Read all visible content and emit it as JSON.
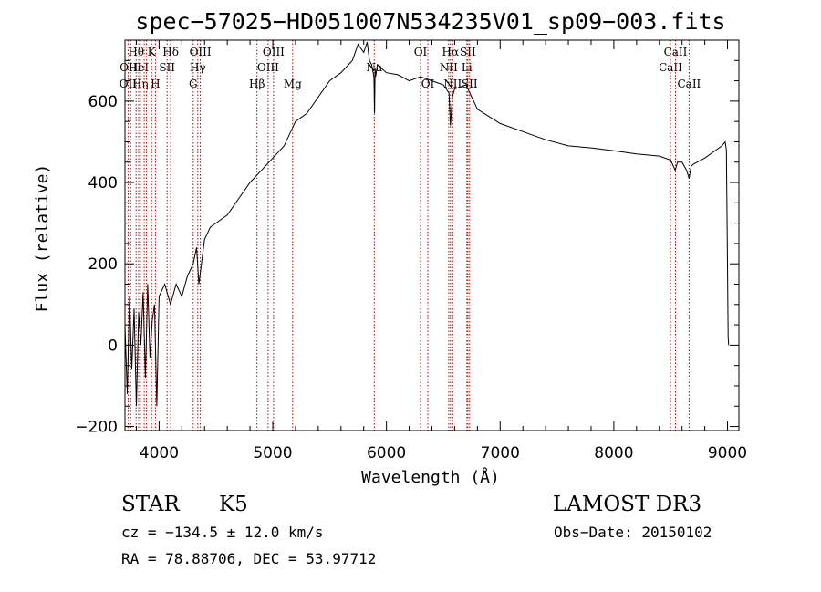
{
  "chart_data": {
    "type": "line",
    "title": "spec−57025−HD051007N534235V01_sp09−003.fits",
    "xlabel": "Wavelength (Å)",
    "ylabel": "Flux (relative)",
    "xlim": [
      3700,
      9100
    ],
    "ylim": [
      -210,
      750
    ],
    "xticks": [
      4000,
      5000,
      6000,
      7000,
      8000,
      9000
    ],
    "xtick_labels": [
      "4000",
      "5000",
      "6000",
      "7000",
      "8000",
      "9000"
    ],
    "yticks": [
      -200,
      0,
      200,
      400,
      600
    ],
    "ytick_labels": [
      "−200",
      "0",
      "200",
      "400",
      "600"
    ],
    "series": [
      {
        "name": "flux",
        "x": [
          3700,
          3720,
          3740,
          3760,
          3780,
          3800,
          3820,
          3840,
          3860,
          3880,
          3900,
          3920,
          3940,
          3960,
          3980,
          4000,
          4050,
          4100,
          4150,
          4200,
          4250,
          4300,
          4330,
          4350,
          4400,
          4450,
          4500,
          4600,
          4700,
          4800,
          4900,
          5000,
          5100,
          5200,
          5300,
          5400,
          5500,
          5600,
          5700,
          5750,
          5800,
          5830,
          5850,
          5870,
          5890,
          5895,
          5900,
          5905,
          5920,
          6000,
          6100,
          6200,
          6300,
          6400,
          6500,
          6550,
          6563,
          6580,
          6600,
          6700,
          6800,
          7000,
          7200,
          7400,
          7600,
          7800,
          8000,
          8200,
          8400,
          8500,
          8540,
          8560,
          8600,
          8640,
          8662,
          8680,
          8700,
          8800,
          8900,
          8950,
          8980,
          8990,
          9000,
          9005,
          9010
        ],
        "y": [
          50,
          -120,
          120,
          -60,
          90,
          -150,
          80,
          0,
          130,
          -80,
          150,
          -30,
          60,
          100,
          -150,
          120,
          150,
          100,
          150,
          120,
          170,
          200,
          240,
          150,
          260,
          290,
          300,
          320,
          360,
          400,
          430,
          460,
          490,
          550,
          570,
          610,
          650,
          670,
          700,
          740,
          720,
          745,
          700,
          690,
          660,
          570,
          680,
          660,
          690,
          670,
          665,
          650,
          660,
          650,
          640,
          620,
          540,
          610,
          630,
          640,
          580,
          545,
          525,
          505,
          490,
          485,
          478,
          470,
          465,
          455,
          430,
          450,
          450,
          430,
          410,
          440,
          445,
          460,
          480,
          490,
          500,
          480,
          200,
          20,
          0
        ]
      }
    ],
    "line_markers": [
      {
        "wavelength": 3727,
        "labels": [
          "OII"
        ],
        "row": 3
      },
      {
        "wavelength": 3750,
        "labels": [
          "OIII"
        ],
        "row": 2
      },
      {
        "wavelength": 3798,
        "labels": [
          "Hθ"
        ],
        "row": 1
      },
      {
        "wavelength": 3820,
        "labels": [
          "HeI"
        ],
        "row": 2
      },
      {
        "wavelength": 3835,
        "labels": [
          "Hη"
        ],
        "row": 3
      },
      {
        "wavelength": 3869,
        "labels": [],
        "row": 0
      },
      {
        "wavelength": 3889,
        "labels": [],
        "row": 0
      },
      {
        "wavelength": 3934,
        "labels": [
          "K"
        ],
        "row": 1
      },
      {
        "wavelength": 3968,
        "labels": [
          "H"
        ],
        "row": 3
      },
      {
        "wavelength": 4071,
        "labels": [
          "SII"
        ],
        "row": 2
      },
      {
        "wavelength": 4102,
        "labels": [
          "Hδ"
        ],
        "row": 1
      },
      {
        "wavelength": 4300,
        "labels": [
          "G"
        ],
        "row": 3
      },
      {
        "wavelength": 4340,
        "labels": [
          "Hγ"
        ],
        "row": 2
      },
      {
        "wavelength": 4363,
        "labels": [
          "OIII"
        ],
        "row": 1
      },
      {
        "wavelength": 4861,
        "labels": [
          "Hβ"
        ],
        "row": 3
      },
      {
        "wavelength": 4959,
        "labels": [
          "OIII"
        ],
        "row": 2
      },
      {
        "wavelength": 5007,
        "labels": [
          "OIII"
        ],
        "row": 1
      },
      {
        "wavelength": 5175,
        "labels": [
          "Mg"
        ],
        "row": 3
      },
      {
        "wavelength": 5893,
        "labels": [
          "Na"
        ],
        "row": 2
      },
      {
        "wavelength": 6300,
        "labels": [
          "OI"
        ],
        "row": 1
      },
      {
        "wavelength": 6364,
        "labels": [
          "OI"
        ],
        "row": 3
      },
      {
        "wavelength": 6548,
        "labels": [
          "NII"
        ],
        "row": 2
      },
      {
        "wavelength": 6563,
        "labels": [
          "Hα"
        ],
        "row": 1
      },
      {
        "wavelength": 6583,
        "labels": [
          "NII"
        ],
        "row": 3
      },
      {
        "wavelength": 6707,
        "labels": [
          "Li"
        ],
        "row": 2
      },
      {
        "wavelength": 6716,
        "labels": [
          "SII"
        ],
        "row": 1
      },
      {
        "wavelength": 6731,
        "labels": [
          "SII"
        ],
        "row": 3
      },
      {
        "wavelength": 8498,
        "labels": [
          "CaII"
        ],
        "row": 2
      },
      {
        "wavelength": 8542,
        "labels": [
          "CaII"
        ],
        "row": 1
      },
      {
        "wavelength": 8662,
        "labels": [
          "CaII"
        ],
        "row": 3
      }
    ]
  },
  "info": {
    "object_type": "STAR",
    "subclass": "K5",
    "survey": "LAMOST DR3",
    "cz": "cz = −134.5 ± 12.0 km/s",
    "obs_date": "Obs−Date: 20150102",
    "coords": "RA =  78.88706, DEC =  53.97712"
  },
  "colors": {
    "axis": "#000000",
    "spectrum": "#000000",
    "marker": "#c00000"
  }
}
